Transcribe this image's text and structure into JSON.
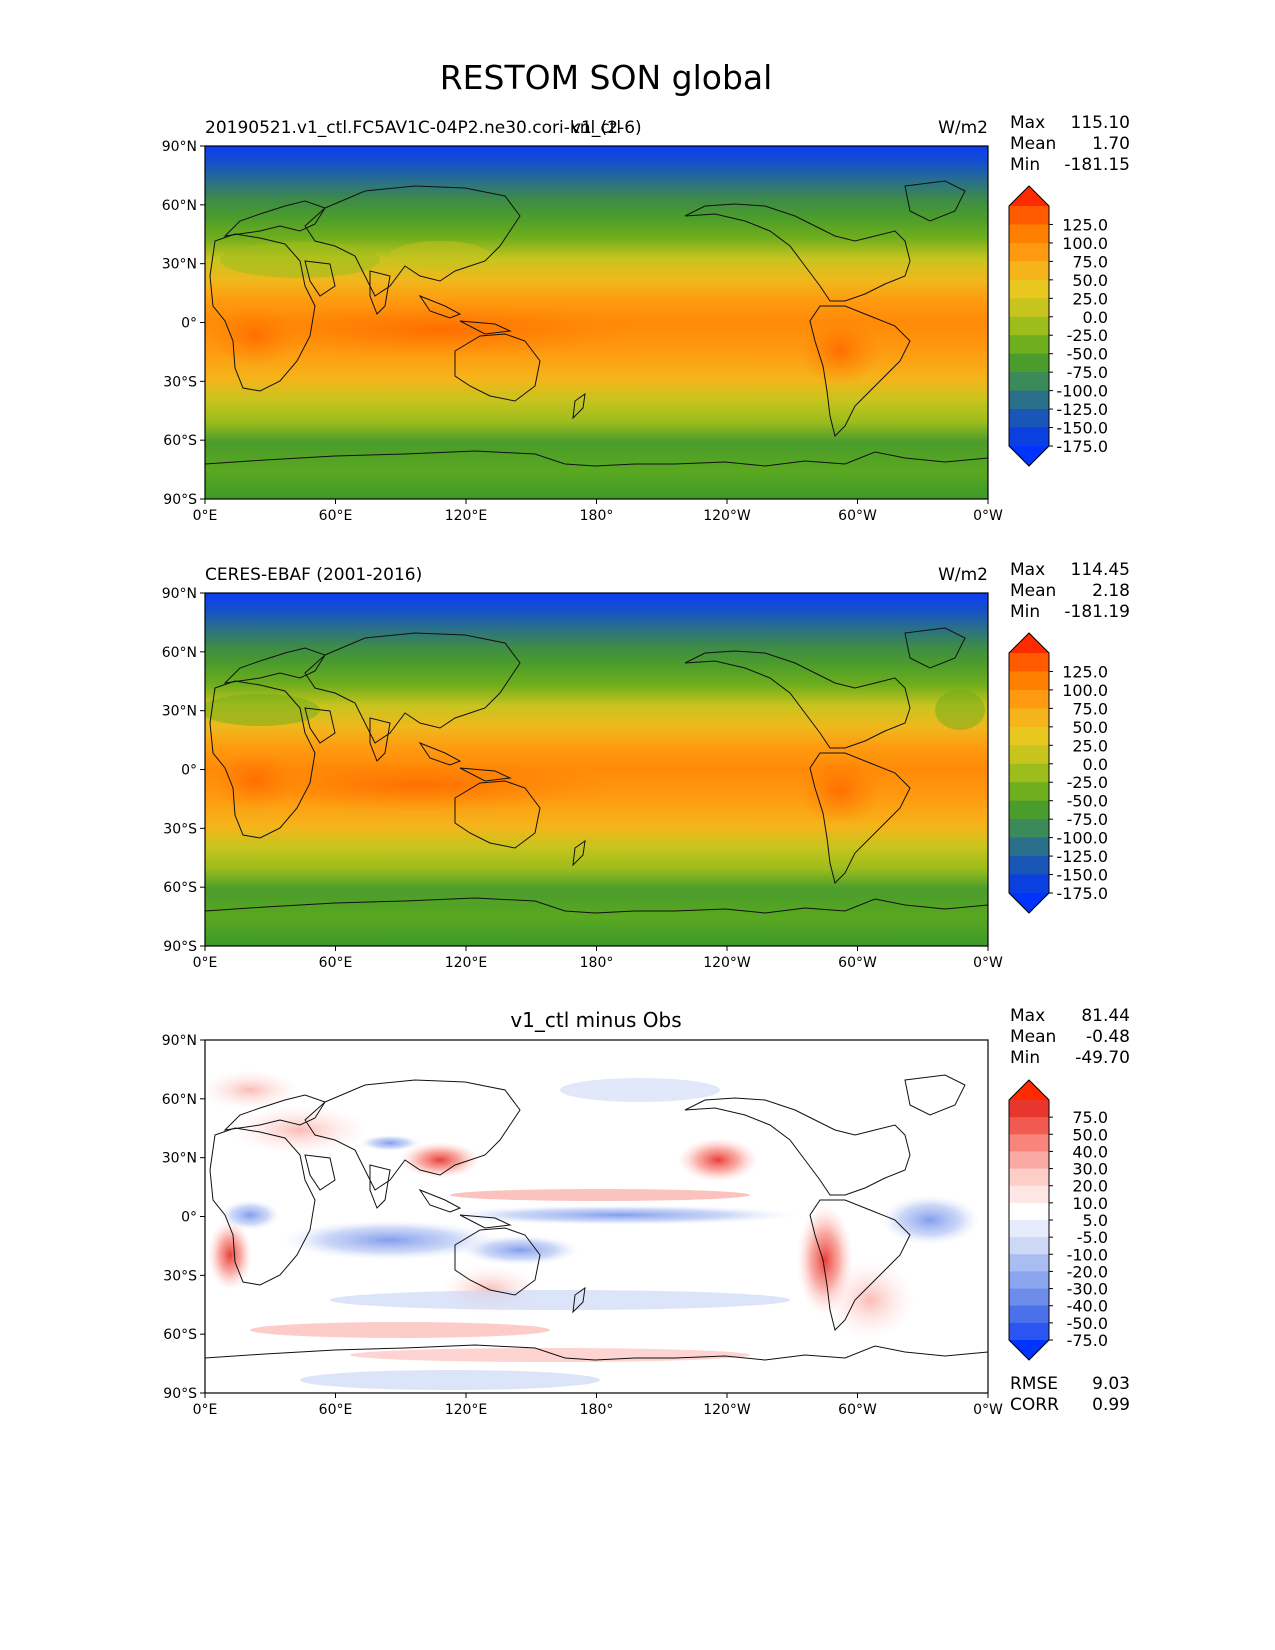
{
  "figure_title": "RESTOM SON global",
  "lon_ticks": [
    "0°E",
    "60°E",
    "120°E",
    "180°",
    "120°W",
    "60°W",
    "0°W"
  ],
  "lat_ticks": [
    "90°N",
    "60°N",
    "30°N",
    "0°",
    "30°S",
    "60°S",
    "90°S"
  ],
  "panels": [
    {
      "left_title": "20190521.v1_ctl.FC5AV1C-04P2.ne30.cori-knl (2-6)",
      "center_title": "v1_ctl",
      "units": "W/m2",
      "stats": [
        {
          "label": "Max",
          "value": "115.10"
        },
        {
          "label": "Mean",
          "value": "1.70"
        },
        {
          "label": "Min",
          "value": "-181.15"
        }
      ],
      "colorbar_levels": [
        "125.0",
        "100.0",
        "75.0",
        "50.0",
        "25.0",
        "0.0",
        "-25.0",
        "-50.0",
        "-75.0",
        "-100.0",
        "-125.0",
        "-150.0",
        "-175.0"
      ]
    },
    {
      "left_title": "CERES-EBAF (2001-2016)",
      "center_title": "",
      "units": "W/m2",
      "stats": [
        {
          "label": "Max",
          "value": "114.45"
        },
        {
          "label": "Mean",
          "value": "2.18"
        },
        {
          "label": "Min",
          "value": "-181.19"
        }
      ],
      "colorbar_levels": [
        "125.0",
        "100.0",
        "75.0",
        "50.0",
        "25.0",
        "0.0",
        "-25.0",
        "-50.0",
        "-75.0",
        "-100.0",
        "-125.0",
        "-150.0",
        "-175.0"
      ]
    },
    {
      "left_title": "",
      "center_title": "v1_ctl minus Obs",
      "units": "",
      "stats": [
        {
          "label": "Max",
          "value": "81.44"
        },
        {
          "label": "Mean",
          "value": "-0.48"
        },
        {
          "label": "Min",
          "value": "-49.70"
        }
      ],
      "colorbar_levels": [
        "75.0",
        "50.0",
        "40.0",
        "30.0",
        "20.0",
        "10.0",
        "5.0",
        "-5.0",
        "-10.0",
        "-20.0",
        "-30.0",
        "-40.0",
        "-50.0",
        "-75.0"
      ],
      "metrics": [
        {
          "label": "RMSE",
          "value": "9.03"
        },
        {
          "label": "CORR",
          "value": "0.99"
        }
      ]
    }
  ],
  "colors": {
    "field_colorbar": [
      "#ff2a00",
      "#ff5a00",
      "#ff7f00",
      "#ff9a10",
      "#f5b41a",
      "#e8c81e",
      "#c8c41e",
      "#9cbd1c",
      "#6fae1c",
      "#4a9c2c",
      "#3a8a5a",
      "#2a6f8a",
      "#1a55b8",
      "#0a40e0",
      "#0033ff"
    ],
    "diff_colorbar": [
      "#ff2a00",
      "#e8352e",
      "#f05a50",
      "#f7857c",
      "#fbaaa3",
      "#fdcdc8",
      "#fde6e4",
      "#ffffff",
      "#e6ecfb",
      "#cdd8f7",
      "#a9bdf2",
      "#8aa4ee",
      "#6d8cea",
      "#4a70ea",
      "#2a55f0",
      "#0033ff"
    ]
  }
}
